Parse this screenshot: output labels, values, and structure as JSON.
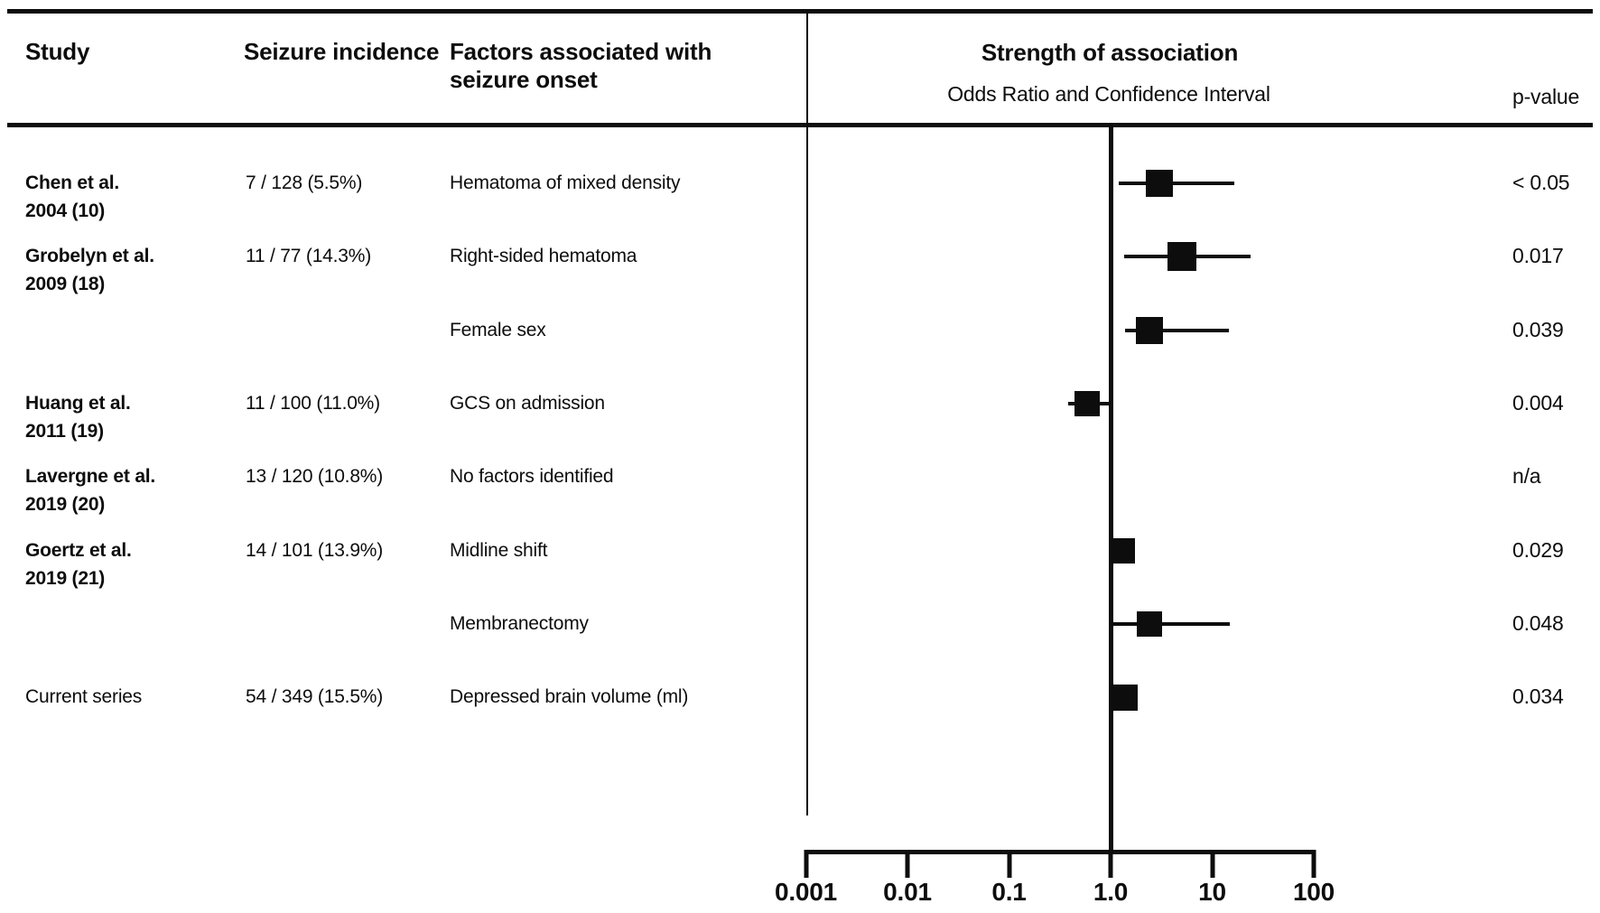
{
  "chart_data": {
    "type": "forest",
    "columns": {
      "study": "Study",
      "incidence": "Seizure incidence",
      "factors_line1": "Factors associated with",
      "factors_line2": "seizure onset",
      "strength": "Strength of association",
      "or_ci": "Odds Ratio and Confidence Interval",
      "p": "p-value"
    },
    "x_axis": {
      "scale": "log10",
      "reference_line": 1.0,
      "tick_values": [
        0.001,
        0.01,
        0.1,
        1.0,
        10,
        100
      ],
      "tick_labels": [
        "0.001",
        "0.01",
        "0.1",
        "1.0",
        "10",
        "100"
      ]
    },
    "rows": [
      {
        "study": "Chen et al.",
        "study_line2": "2004 (10)",
        "bold": true,
        "incidence": "7 / 128 (5.5%)",
        "factor": "Hematoma of mixed density",
        "or": 3.0,
        "ci_low": 1.2,
        "ci_high": 16.5,
        "marker_size": 30,
        "p": "< 0.05"
      },
      {
        "study": "Grobelyn et al.",
        "study_line2": "2009 (18)",
        "bold": true,
        "incidence": "11 / 77 (14.3%)",
        "factor": "Right-sided hematoma",
        "or": 5.0,
        "ci_low": 1.35,
        "ci_high": 24,
        "marker_size": 32,
        "p": "0.017"
      },
      {
        "study": "",
        "study_line2": "",
        "bold": false,
        "incidence": "",
        "factor": "Female sex",
        "or": 2.4,
        "ci_low": 1.4,
        "ci_high": 14.5,
        "marker_size": 30,
        "p": "0.039"
      },
      {
        "study": "Huang et al.",
        "study_line2": "2011 (19)",
        "bold": true,
        "incidence": "11 / 100 (11.0%)",
        "factor": "GCS on admission",
        "or": 0.59,
        "ci_low": 0.38,
        "ci_high": 1.0,
        "marker_size": 28,
        "p": "0.004"
      },
      {
        "study": "Lavergne et al.",
        "study_line2": "2019 (20)",
        "bold": true,
        "incidence": "13 / 120 (10.8%)",
        "factor": "No factors identified",
        "or": null,
        "ci_low": null,
        "ci_high": null,
        "marker_size": 0,
        "p": "n/a"
      },
      {
        "study": "Goertz et al.",
        "study_line2": "2019 (21)",
        "bold": true,
        "incidence": "14 / 101 (13.9%)",
        "factor": "Midline shift",
        "or": 1.31,
        "ci_low": null,
        "ci_high": null,
        "marker_size": 28,
        "p": "0.029"
      },
      {
        "study": "",
        "study_line2": "",
        "bold": false,
        "incidence": "",
        "factor": "Membranectomy",
        "or": 2.4,
        "ci_low": 1.0,
        "ci_high": 15,
        "marker_size": 28,
        "p": "0.048"
      },
      {
        "study": "Current series",
        "study_line2": "",
        "bold": false,
        "incidence": "54 / 349 (15.5%)",
        "factor": "Depressed brain volume (ml)",
        "or": 1.36,
        "ci_low": null,
        "ci_high": null,
        "marker_size": 29,
        "p": "0.034"
      }
    ]
  }
}
